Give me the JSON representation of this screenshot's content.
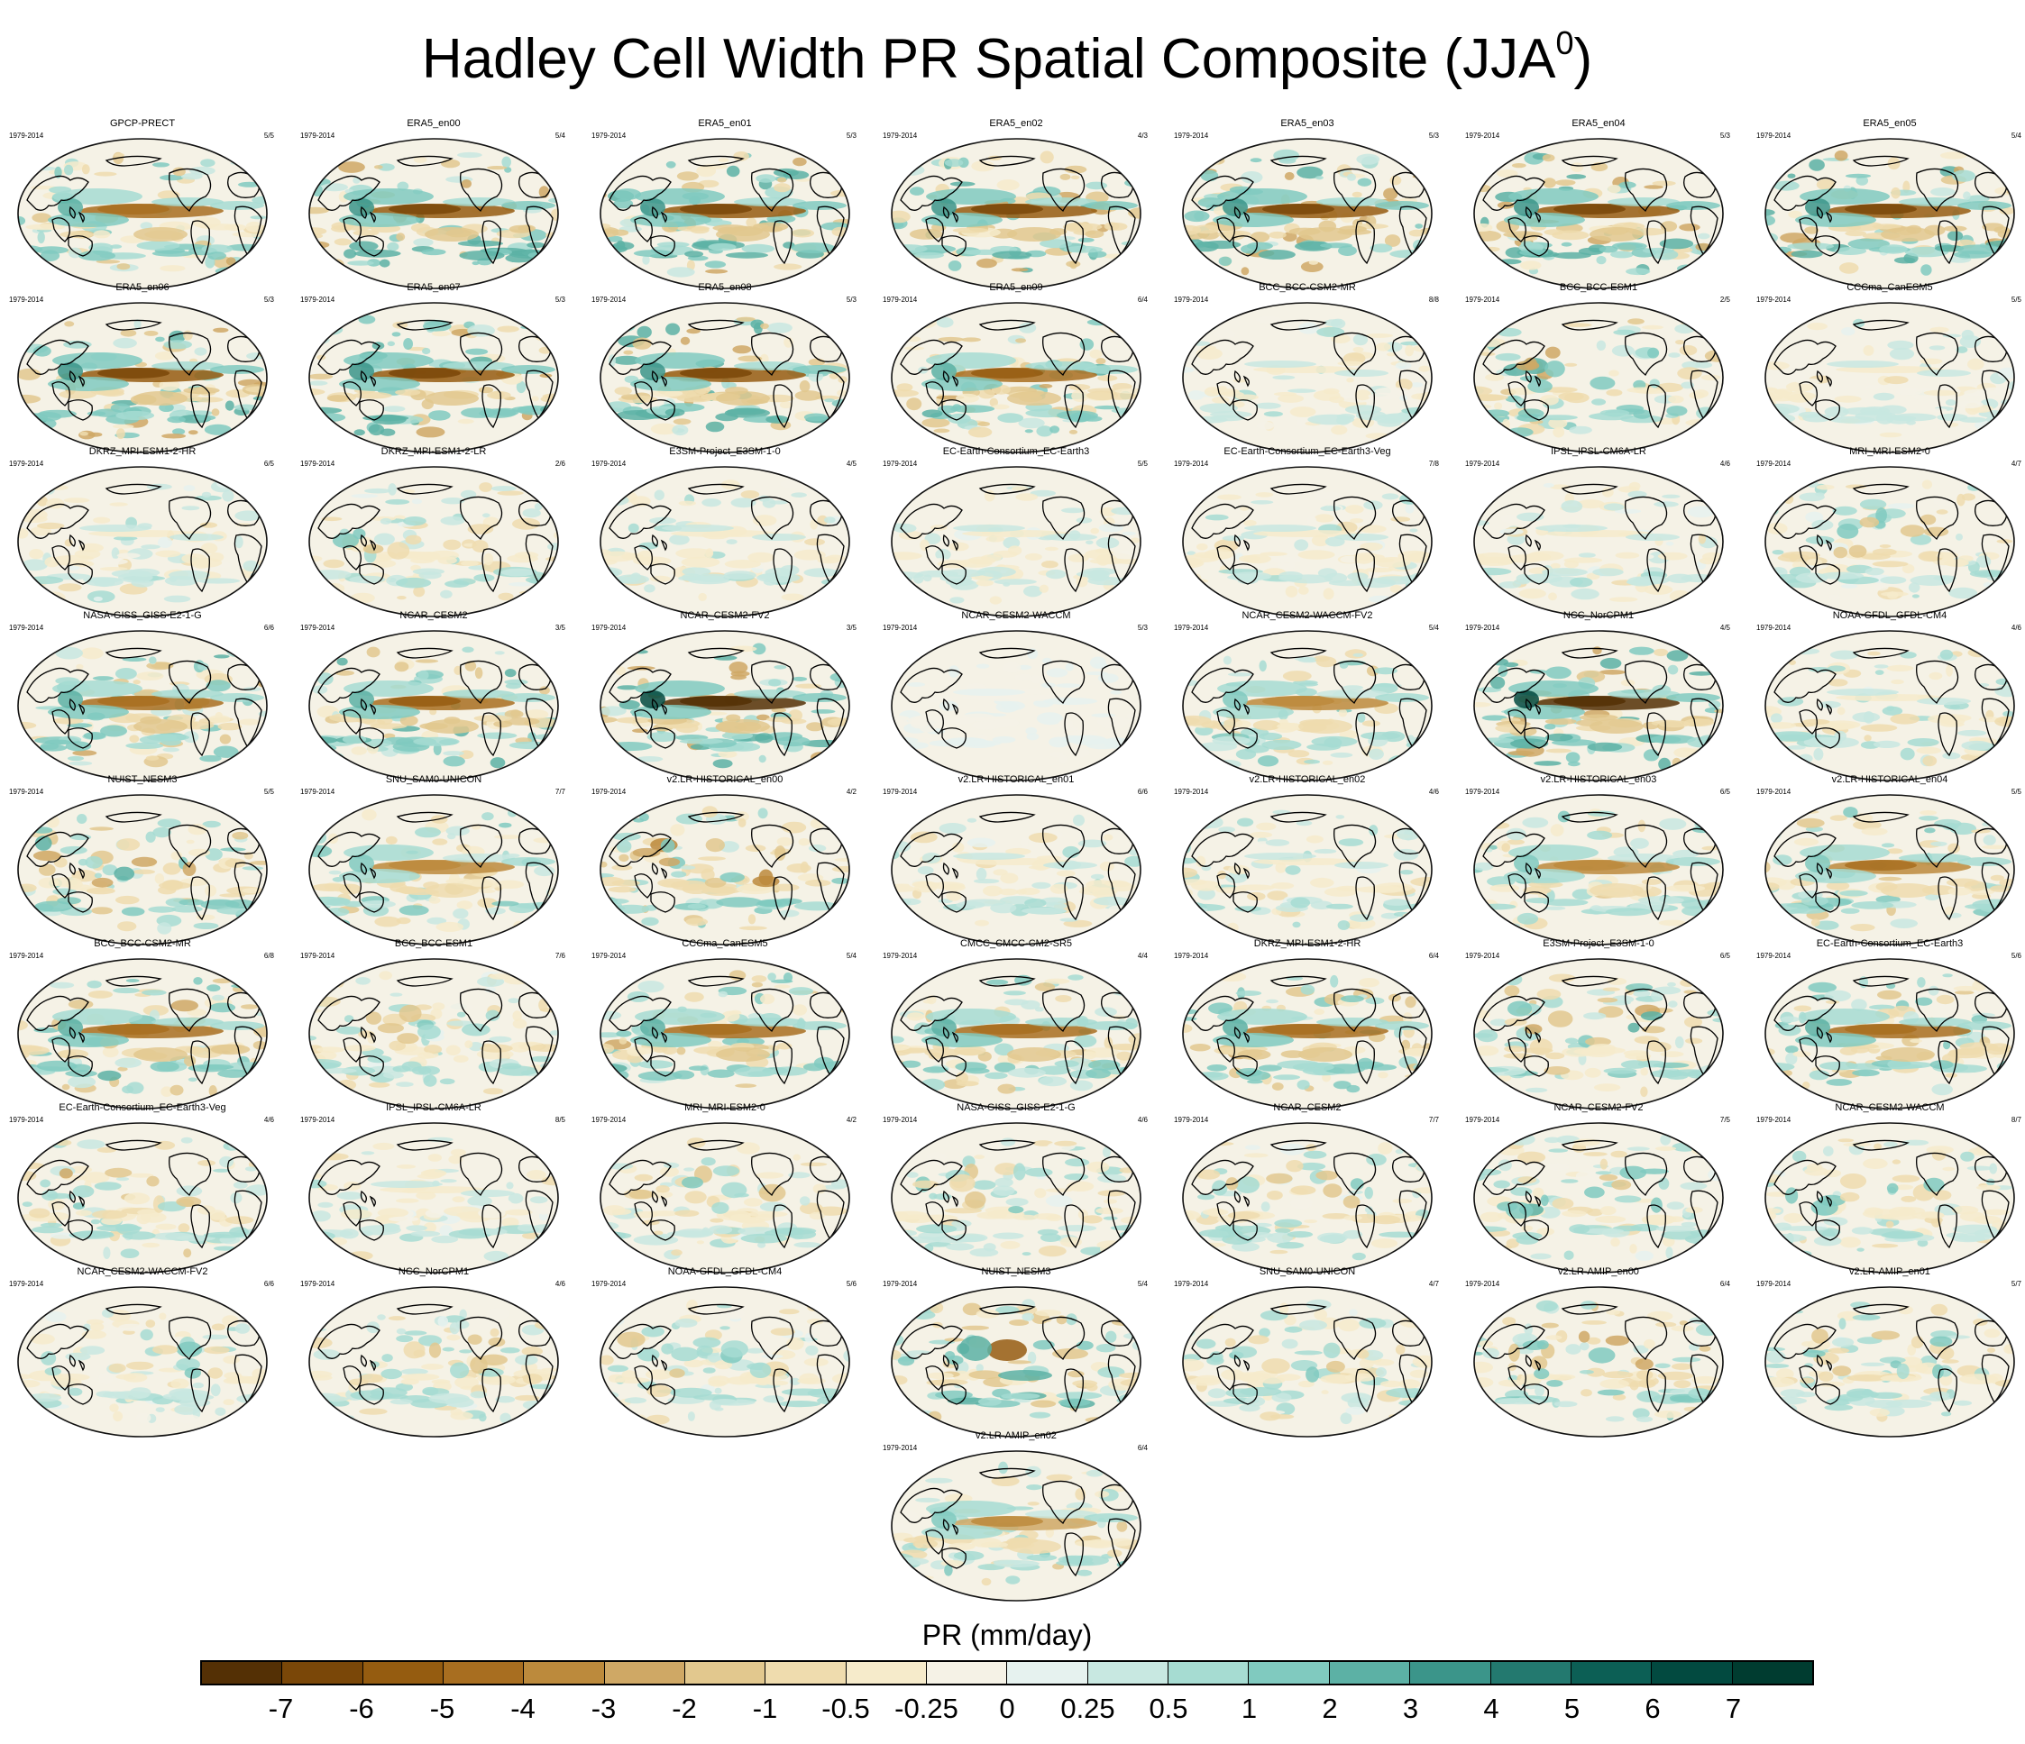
{
  "title": "Hadley Cell Width PR Spatial Composite (JJA",
  "title_superscript": "0",
  "title_suffix": ")",
  "chart_data": {
    "type": "heatmap",
    "title": "Hadley Cell Width PR Spatial Composite (JJA0)",
    "colorbar": {
      "label": "PR (mm/day)",
      "levels": [
        "-7",
        "-6",
        "-5",
        "-4",
        "-3",
        "-2",
        "-1",
        "-0.5",
        "-0.25",
        "0",
        "0.25",
        "0.5",
        "1",
        "2",
        "3",
        "4",
        "5",
        "6",
        "7"
      ],
      "colors": [
        "#543005",
        "#7a4708",
        "#955c10",
        "#a86e20",
        "#bc8a3c",
        "#cfa865",
        "#e2c88e",
        "#efdcae",
        "#f6ebcb",
        "#f5f2e6",
        "#e6f2ef",
        "#c8e8e1",
        "#a6dcd2",
        "#80cabf",
        "#5cb1a5",
        "#3b958a",
        "#23796f",
        "#0c5f55",
        "#024a40",
        "#003c30"
      ]
    },
    "panels": [
      {
        "name": "GPCP-PRECT",
        "years": "1979-2014",
        "ratio": "5/5",
        "intensity": 0.85,
        "pattern": 1
      },
      {
        "name": "ERA5_en00",
        "years": "1979-2014",
        "ratio": "5/4",
        "intensity": 1.0,
        "pattern": 1
      },
      {
        "name": "ERA5_en01",
        "years": "1979-2014",
        "ratio": "5/3",
        "intensity": 1.0,
        "pattern": 1
      },
      {
        "name": "ERA5_en02",
        "years": "1979-2014",
        "ratio": "4/3",
        "intensity": 1.0,
        "pattern": 1
      },
      {
        "name": "ERA5_en03",
        "years": "1979-2014",
        "ratio": "5/3",
        "intensity": 1.0,
        "pattern": 1
      },
      {
        "name": "ERA5_en04",
        "years": "1979-2014",
        "ratio": "5/3",
        "intensity": 1.0,
        "pattern": 1
      },
      {
        "name": "ERA5_en05",
        "years": "1979-2014",
        "ratio": "5/4",
        "intensity": 1.0,
        "pattern": 1
      },
      {
        "name": "ERA5_en06",
        "years": "1979-2014",
        "ratio": "5/3",
        "intensity": 1.0,
        "pattern": 1
      },
      {
        "name": "ERA5_en07",
        "years": "1979-2014",
        "ratio": "5/3",
        "intensity": 1.0,
        "pattern": 1
      },
      {
        "name": "ERA5_en08",
        "years": "1979-2014",
        "ratio": "5/3",
        "intensity": 1.0,
        "pattern": 1
      },
      {
        "name": "ERA5_en09",
        "years": "1979-2014",
        "ratio": "6/4",
        "intensity": 0.9,
        "pattern": 1
      },
      {
        "name": "BCC_BCC-CSM2-MR",
        "years": "1979-2014",
        "ratio": "8/8",
        "intensity": 0.45,
        "pattern": 2
      },
      {
        "name": "BCC_BCC-ESM1",
        "years": "1979-2014",
        "ratio": "2/5",
        "intensity": 0.75,
        "pattern": 3
      },
      {
        "name": "CCCma_CanESM5",
        "years": "1979-2014",
        "ratio": "5/5",
        "intensity": 0.45,
        "pattern": 2
      },
      {
        "name": "DKRZ_MPI-ESM1-2-HR",
        "years": "1979-2014",
        "ratio": "6/5",
        "intensity": 0.5,
        "pattern": 2
      },
      {
        "name": "DKRZ_MPI-ESM1-2-LR",
        "years": "1979-2014",
        "ratio": "2/6",
        "intensity": 0.55,
        "pattern": 3
      },
      {
        "name": "E3SM-Project_E3SM-1-0",
        "years": "1979-2014",
        "ratio": "4/5",
        "intensity": 0.5,
        "pattern": 2
      },
      {
        "name": "EC-Earth-Consortium_EC-Earth3",
        "years": "1979-2014",
        "ratio": "5/5",
        "intensity": 0.45,
        "pattern": 2
      },
      {
        "name": "EC-Earth-Consortium_EC-Earth3-Veg",
        "years": "1979-2014",
        "ratio": "7/8",
        "intensity": 0.45,
        "pattern": 2
      },
      {
        "name": "IPSL_IPSL-CM6A-LR",
        "years": "1979-2014",
        "ratio": "4/6",
        "intensity": 0.45,
        "pattern": 2
      },
      {
        "name": "MRI_MRI-ESM2-0",
        "years": "1979-2014",
        "ratio": "4/7",
        "intensity": 0.6,
        "pattern": 3
      },
      {
        "name": "NASA-GISS_GISS-E2-1-G",
        "years": "1979-2014",
        "ratio": "6/6",
        "intensity": 0.85,
        "pattern": 1
      },
      {
        "name": "NCAR_CESM2",
        "years": "1979-2014",
        "ratio": "3/5",
        "intensity": 0.9,
        "pattern": 1
      },
      {
        "name": "NCAR_CESM2-FV2",
        "years": "1979-2014",
        "ratio": "3/5",
        "intensity": 1.0,
        "pattern": 4
      },
      {
        "name": "NCAR_CESM2-WACCM",
        "years": "1979-2014",
        "ratio": "5/3",
        "intensity": 0.05,
        "pattern": 2
      },
      {
        "name": "NCAR_CESM2-WACCM-FV2",
        "years": "1979-2014",
        "ratio": "5/4",
        "intensity": 0.7,
        "pattern": 1
      },
      {
        "name": "NCC_NorCPM1",
        "years": "1979-2014",
        "ratio": "4/5",
        "intensity": 1.0,
        "pattern": 4
      },
      {
        "name": "NOAA-GFDL_GFDL-CM4",
        "years": "1979-2014",
        "ratio": "4/6",
        "intensity": 0.6,
        "pattern": 2
      },
      {
        "name": "NUIST_NESM3",
        "years": "1979-2014",
        "ratio": "5/5",
        "intensity": 0.75,
        "pattern": 3
      },
      {
        "name": "SNU_SAM0-UNICON",
        "years": "1979-2014",
        "ratio": "7/7",
        "intensity": 0.7,
        "pattern": 1
      },
      {
        "name": "v2.LR-HISTORICAL_en00",
        "years": "1979-2014",
        "ratio": "4/2",
        "intensity": 0.85,
        "pattern": 3
      },
      {
        "name": "v2.LR-HISTORICAL_en01",
        "years": "1979-2014",
        "ratio": "6/6",
        "intensity": 0.5,
        "pattern": 2
      },
      {
        "name": "v2.LR-HISTORICAL_en02",
        "years": "1979-2014",
        "ratio": "4/6",
        "intensity": 0.55,
        "pattern": 2
      },
      {
        "name": "v2.LR-HISTORICAL_en03",
        "years": "1979-2014",
        "ratio": "6/5",
        "intensity": 0.7,
        "pattern": 1
      },
      {
        "name": "v2.LR-HISTORICAL_en04",
        "years": "1979-2014",
        "ratio": "5/5",
        "intensity": 0.75,
        "pattern": 1
      },
      {
        "name": "BCC_BCC-CSM2-MR",
        "years": "1979-2014",
        "ratio": "6/8",
        "intensity": 0.85,
        "pattern": 1
      },
      {
        "name": "BCC_BCC-ESM1",
        "years": "1979-2014",
        "ratio": "7/6",
        "intensity": 0.6,
        "pattern": 3
      },
      {
        "name": "CCCma_CanESM5",
        "years": "1979-2014",
        "ratio": "5/4",
        "intensity": 0.85,
        "pattern": 1
      },
      {
        "name": "CMCC_CMCC-CM2-SR5",
        "years": "1979-2014",
        "ratio": "4/4",
        "intensity": 0.8,
        "pattern": 1
      },
      {
        "name": "DKRZ_MPI-ESM1-2-HR",
        "years": "1979-2014",
        "ratio": "6/4",
        "intensity": 0.85,
        "pattern": 1
      },
      {
        "name": "E3SM-Project_E3SM-1-0",
        "years": "1979-2014",
        "ratio": "6/5",
        "intensity": 0.7,
        "pattern": 3
      },
      {
        "name": "EC-Earth-Consortium_EC-Earth3",
        "years": "1979-2014",
        "ratio": "5/6",
        "intensity": 0.8,
        "pattern": 1
      },
      {
        "name": "EC-Earth-Consortium_EC-Earth3-Veg",
        "years": "1979-2014",
        "ratio": "4/6",
        "intensity": 0.65,
        "pattern": 3
      },
      {
        "name": "IPSL_IPSL-CM6A-LR",
        "years": "1979-2014",
        "ratio": "8/5",
        "intensity": 0.45,
        "pattern": 2
      },
      {
        "name": "MRI_MRI-ESM2-0",
        "years": "1979-2014",
        "ratio": "4/2",
        "intensity": 0.6,
        "pattern": 3
      },
      {
        "name": "NASA-GISS_GISS-E2-1-G",
        "years": "1979-2014",
        "ratio": "4/6",
        "intensity": 0.55,
        "pattern": 3
      },
      {
        "name": "NCAR_CESM2",
        "years": "1979-2014",
        "ratio": "7/7",
        "intensity": 0.6,
        "pattern": 3
      },
      {
        "name": "NCAR_CESM2-FV2",
        "years": "1979-2014",
        "ratio": "7/5",
        "intensity": 0.65,
        "pattern": 3
      },
      {
        "name": "NCAR_CESM2-WACCM",
        "years": "1979-2014",
        "ratio": "8/7",
        "intensity": 0.55,
        "pattern": 3
      },
      {
        "name": "NCAR_CESM2-WACCM-FV2",
        "years": "1979-2014",
        "ratio": "6/6",
        "intensity": 0.5,
        "pattern": 3
      },
      {
        "name": "NCC_NorCPM1",
        "years": "1979-2014",
        "ratio": "4/6",
        "intensity": 0.6,
        "pattern": 3
      },
      {
        "name": "NOAA-GFDL_GFDL-CM4",
        "years": "1979-2014",
        "ratio": "5/6",
        "intensity": 0.55,
        "pattern": 3
      },
      {
        "name": "NUIST_NESM3",
        "years": "1979-2014",
        "ratio": "5/4",
        "intensity": 0.9,
        "pattern": 5
      },
      {
        "name": "SNU_SAM0-UNICON",
        "years": "1979-2014",
        "ratio": "4/7",
        "intensity": 0.6,
        "pattern": 3
      },
      {
        "name": "v2.LR-AMIP_en00",
        "years": "1979-2014",
        "ratio": "6/4",
        "intensity": 0.7,
        "pattern": 3
      },
      {
        "name": "v2.LR-AMIP_en01",
        "years": "1979-2014",
        "ratio": "5/7",
        "intensity": 0.6,
        "pattern": 3
      },
      {
        "name": "v2.LR-AMIP_en02",
        "years": "1979-2014",
        "ratio": "6/4",
        "intensity": 0.65,
        "pattern": 1
      }
    ]
  }
}
